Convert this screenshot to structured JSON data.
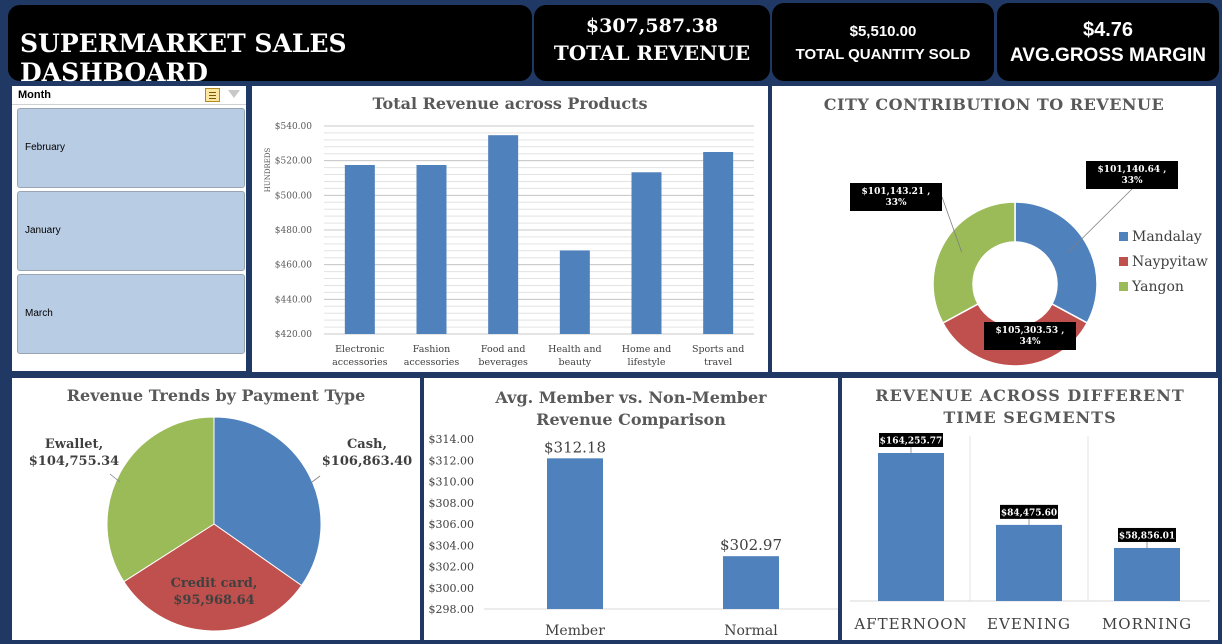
{
  "header": {
    "title": "SUPERMARKET SALES DASHBOARD",
    "kpis": [
      {
        "value": "$307,587.38",
        "label": "TOTAL REVENUE"
      },
      {
        "value": "$5,510.00",
        "label": "TOTAL QUANTITY SOLD"
      },
      {
        "value": "$4.76",
        "label": "AVG.GROSS MARGIN"
      }
    ]
  },
  "slicer": {
    "title": "Month",
    "items": [
      "February",
      "January",
      "March"
    ]
  },
  "colors": {
    "blue": "#4f81bd",
    "red": "#c0504d",
    "green": "#9bbb59",
    "navy": "#1f3864"
  },
  "chart_data": [
    {
      "type": "bar",
      "title": "Total Revenue across Products",
      "ylabel": "HUNDREDS",
      "categories": [
        "Electronic accessories",
        "Fashion accessories",
        "Food and beverages",
        "Health and beauty",
        "Home and lifestyle",
        "Sports and travel"
      ],
      "category_lines": [
        [
          "Electronic",
          "accessories"
        ],
        [
          "Fashion",
          "accessories"
        ],
        [
          "Food and",
          "beverages"
        ],
        [
          "Health and",
          "beauty"
        ],
        [
          "Home and",
          "lifestyle"
        ],
        [
          "Sports and",
          "travel"
        ]
      ],
      "values": [
        517.5,
        517.5,
        534.7,
        468.2,
        513.3,
        525.0
      ],
      "ylim": [
        420,
        540
      ],
      "yticks": [
        "$540.00",
        "$520.00",
        "$500.00",
        "$480.00",
        "$460.00",
        "$440.00",
        "$420.00"
      ],
      "grid": true
    },
    {
      "type": "pie",
      "title": "CITY CONTRIBUTION TO REVENUE",
      "donut": true,
      "labels": [
        "Mandalay",
        "Naypyitaw",
        "Yangon"
      ],
      "values": [
        101140.64,
        105303.53,
        101143.21
      ],
      "data_labels": [
        [
          "$101,140.64 ,",
          "33%"
        ],
        [
          "$105,303.53 ,",
          "34%"
        ],
        [
          "$101,143.21 ,",
          "33%"
        ]
      ],
      "legend": "right"
    },
    {
      "type": "pie",
      "title": "Revenue Trends by Payment Type",
      "labels": [
        "Cash",
        "Credit card",
        "Ewallet"
      ],
      "values": [
        106863.4,
        95968.64,
        104755.34
      ],
      "data_labels": [
        [
          "Cash,",
          "$106,863.40"
        ],
        [
          "Credit card,",
          "$95,968.64"
        ],
        [
          "Ewallet,",
          "$104,755.34"
        ]
      ]
    },
    {
      "type": "bar",
      "title": "Avg. Member vs. Non-Member Revenue Comparison",
      "title_lines": [
        "Avg. Member vs. Non-Member",
        "Revenue Comparison"
      ],
      "categories": [
        "Member",
        "Normal"
      ],
      "values": [
        312.18,
        302.97
      ],
      "data_labels": [
        "$312.18",
        "$302.97"
      ],
      "ylim": [
        298,
        314
      ],
      "yticks": [
        "$314.00",
        "$312.00",
        "$310.00",
        "$308.00",
        "$306.00",
        "$304.00",
        "$302.00",
        "$300.00",
        "$298.00"
      ]
    },
    {
      "type": "bar",
      "title": "REVENUE ACROSS DIFFERENT TIME SEGMENTS",
      "title_lines": [
        "REVENUE ACROSS DIFFERENT",
        "TIME SEGMENTS"
      ],
      "categories": [
        "AFTERNOON",
        "EVENING",
        "MORNING"
      ],
      "values": [
        164255.77,
        84475.6,
        58856.01
      ],
      "data_labels": [
        "$164,255.77",
        "$84,475.60",
        "$58,856.01"
      ]
    }
  ]
}
